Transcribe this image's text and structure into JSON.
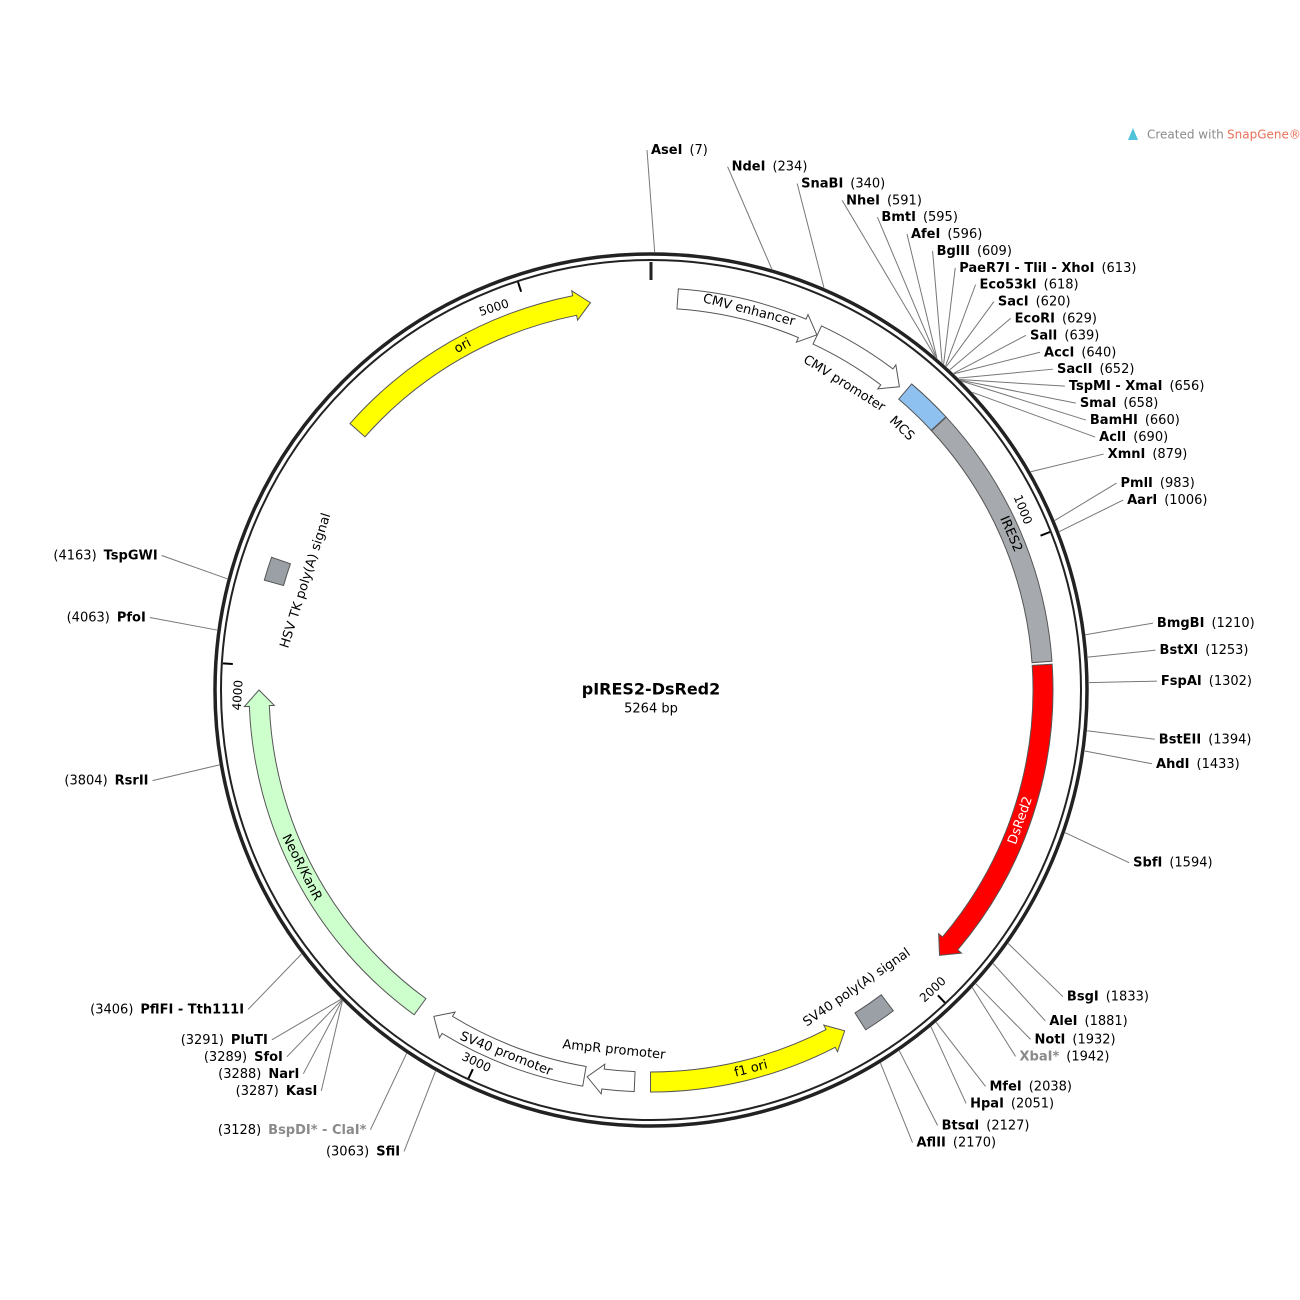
{
  "plasmid": {
    "name": "pIRES2-DsRed2",
    "size": {
      "value": 5264,
      "label": "5264 bp"
    },
    "scale_ticks": [
      1000,
      2000,
      3000,
      4000,
      5000
    ],
    "backbone_color": "#222222",
    "features": [
      {
        "name": "CMV enhancer",
        "start": 57,
        "end": 366,
        "direction": 1,
        "color": "#ffffff"
      },
      {
        "name": "CMV promoter",
        "start": 367,
        "end": 575,
        "direction": 1,
        "color": "#ffffff"
      },
      {
        "name": "MCS",
        "start": 591,
        "end": 690,
        "direction": 0,
        "color": "#8ec1f0"
      },
      {
        "name": "IRES2",
        "start": 691,
        "end": 1256,
        "direction": 0,
        "color": "#a6a9ad"
      },
      {
        "name": "DsRed2",
        "start": 1262,
        "end": 1939,
        "direction": 1,
        "color": "#ff0000"
      },
      {
        "name": "SV40 poly(A) signal",
        "start": 2090,
        "end": 2160,
        "direction": 0,
        "color": "#9aa0a6"
      },
      {
        "name": "f1 ori",
        "start": 2199,
        "end": 2633,
        "direction": -1,
        "color": "#ffff00"
      },
      {
        "name": "AmpR promoter",
        "start": 2667,
        "end": 2769,
        "direction": 1,
        "color": "#ffffff"
      },
      {
        "name": "SV40 promoter",
        "start": 2775,
        "end": 3124,
        "direction": 1,
        "color": "#ffffff"
      },
      {
        "name": "NeoR/KanR",
        "start": 3160,
        "end": 3948,
        "direction": 1,
        "color": "#ccffcc"
      },
      {
        "name": "HSV TK poly(A) signal",
        "start": 4180,
        "end": 4230,
        "direction": 0,
        "color": "#9aa0a6"
      },
      {
        "name": "ori",
        "start": 4555,
        "end": 5134,
        "direction": 1,
        "color": "#ffff00"
      }
    ],
    "sites": [
      {
        "name": "AseI",
        "position": {
          "value": 7,
          "label": "(7)"
        }
      },
      {
        "name": "NdeI",
        "position": {
          "value": 234,
          "label": "(234)"
        }
      },
      {
        "name": "SnaBI",
        "position": {
          "value": 340,
          "label": "(340)"
        }
      },
      {
        "name": "NheI",
        "position": {
          "value": 591,
          "label": "(591)"
        }
      },
      {
        "name": "BmtI",
        "position": {
          "value": 595,
          "label": "(595)"
        }
      },
      {
        "name": "AfeI",
        "position": {
          "value": 596,
          "label": "(596)"
        }
      },
      {
        "name": "BglII",
        "position": {
          "value": 609,
          "label": "(609)"
        }
      },
      {
        "name": "PaeR7I - TliI - XhoI",
        "position": {
          "value": 613,
          "label": "(613)"
        }
      },
      {
        "name": "Eco53kI",
        "position": {
          "value": 618,
          "label": "(618)"
        }
      },
      {
        "name": "SacI",
        "position": {
          "value": 620,
          "label": "(620)"
        }
      },
      {
        "name": "EcoRI",
        "position": {
          "value": 629,
          "label": "(629)"
        }
      },
      {
        "name": "SalI",
        "position": {
          "value": 639,
          "label": "(639)"
        }
      },
      {
        "name": "AccI",
        "position": {
          "value": 640,
          "label": "(640)"
        }
      },
      {
        "name": "SacII",
        "position": {
          "value": 652,
          "label": "(652)"
        }
      },
      {
        "name": "TspMI - XmaI",
        "position": {
          "value": 656,
          "label": "(656)"
        }
      },
      {
        "name": "SmaI",
        "position": {
          "value": 658,
          "label": "(658)"
        }
      },
      {
        "name": "BamHI",
        "position": {
          "value": 660,
          "label": "(660)"
        }
      },
      {
        "name": "AclI",
        "position": {
          "value": 690,
          "label": "(690)"
        }
      },
      {
        "name": "XmnI",
        "position": {
          "value": 879,
          "label": "(879)"
        }
      },
      {
        "name": "PmlI",
        "position": {
          "value": 983,
          "label": "(983)"
        }
      },
      {
        "name": "AarI",
        "position": {
          "value": 1006,
          "label": "(1006)"
        }
      },
      {
        "name": "BmgBI",
        "position": {
          "value": 1210,
          "label": "(1210)"
        }
      },
      {
        "name": "BstXI",
        "position": {
          "value": 1253,
          "label": "(1253)"
        }
      },
      {
        "name": "FspAI",
        "position": {
          "value": 1302,
          "label": "(1302)"
        }
      },
      {
        "name": "BstEII",
        "position": {
          "value": 1394,
          "label": "(1394)"
        }
      },
      {
        "name": "AhdI",
        "position": {
          "value": 1433,
          "label": "(1433)"
        }
      },
      {
        "name": "SbfI",
        "position": {
          "value": 1594,
          "label": "(1594)"
        }
      },
      {
        "name": "BsgI",
        "position": {
          "value": 1833,
          "label": "(1833)"
        }
      },
      {
        "name": "AleI",
        "position": {
          "value": 1881,
          "label": "(1881)"
        }
      },
      {
        "name": "NotI",
        "position": {
          "value": 1932,
          "label": "(1932)"
        }
      },
      {
        "name": "XbaI*",
        "position": {
          "value": 1942,
          "label": "(1942)"
        },
        "color": "#8a8a8a"
      },
      {
        "name": "MfeI",
        "position": {
          "value": 2038,
          "label": "(2038)"
        }
      },
      {
        "name": "HpaI",
        "position": {
          "value": 2051,
          "label": "(2051)"
        }
      },
      {
        "name": "BtsαI",
        "position": {
          "value": 2127,
          "label": "(2127)"
        }
      },
      {
        "name": "AflII",
        "position": {
          "value": 2170,
          "label": "(2170)"
        }
      },
      {
        "name": "SfiI",
        "position": {
          "value": 3063,
          "label": "(3063)"
        }
      },
      {
        "name": "BspDI* - ClaI*",
        "position": {
          "value": 3128,
          "label": "(3128)"
        },
        "color": "#8a8a8a"
      },
      {
        "name": "KasI",
        "position": {
          "value": 3287,
          "label": "(3287)"
        }
      },
      {
        "name": "NarI",
        "position": {
          "value": 3288,
          "label": "(3288)"
        }
      },
      {
        "name": "SfoI",
        "position": {
          "value": 3289,
          "label": "(3289)"
        }
      },
      {
        "name": "PluTI",
        "position": {
          "value": 3291,
          "label": "(3291)"
        }
      },
      {
        "name": "PflFI - Tth111I",
        "position": {
          "value": 3406,
          "label": "(3406)"
        }
      },
      {
        "name": "RsrII",
        "position": {
          "value": 3804,
          "label": "(3804)"
        }
      },
      {
        "name": "PfoI",
        "position": {
          "value": 4063,
          "label": "(4063)"
        }
      },
      {
        "name": "TspGWI",
        "position": {
          "value": 4163,
          "label": "(4163)"
        }
      }
    ]
  },
  "watermark": [
    "Created with",
    "SnapGene®"
  ]
}
